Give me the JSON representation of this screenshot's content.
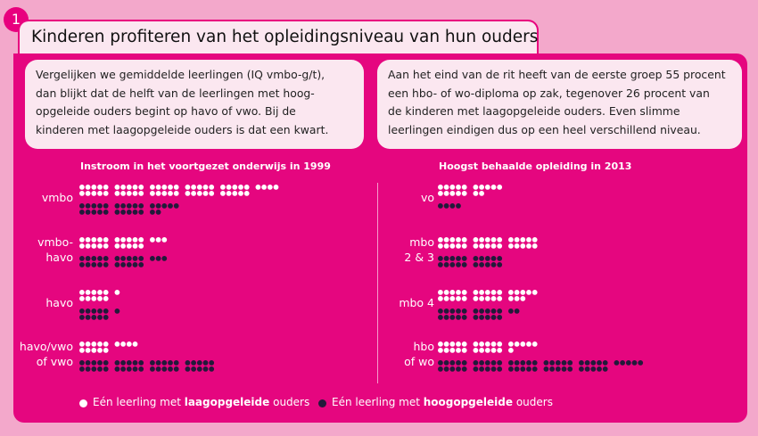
{
  "badge": "1",
  "title": "Kinderen profiteren van het opleidingsniveau van hun ouders",
  "intro_left": [
    "Vergelijken we gemiddelde leerlingen (IQ vmbo-g/t),",
    "dan blijkt dat de helft van de leerlingen met hoog-",
    "opgeleide ouders begint op havo of vwo. Bij de",
    "kinderen met laagopgeleide ouders is dat een kwart."
  ],
  "intro_right": [
    "Aan het eind van de rit heeft van de eerste groep 55 procent",
    "een hbo- of wo-diploma op zak, tegenover 26 procent van",
    "de kinderen met laagopgeleide ouders. Even slimme",
    "leerlingen eindigen dus op een heel verschillend niveau."
  ],
  "legend": {
    "low_prefix": "Eén leerling met ",
    "low_bold": "laagopgeleide",
    "low_suffix": " ouders",
    "high_prefix": "Eén leerling met ",
    "high_bold": "hoogopgeleide",
    "high_suffix": " ouders"
  },
  "colors": {
    "low": "#ffffff",
    "high": "#221a3a",
    "accent": "#e5067f",
    "bg": "#f3a8cb",
    "box": "#fbe7f0"
  },
  "chart_data": [
    {
      "type": "dot-matrix",
      "title": "Instroom in het voortgezet onderwijs in 1999",
      "categories": [
        "vmbo",
        "vmbo-\nhavo",
        "havo",
        "havo/vwo\nof vwo"
      ],
      "series": [
        {
          "name": "Eén leerling met laagopgeleide ouders",
          "values": [
            54,
            23,
            11,
            14
          ]
        },
        {
          "name": "Eén leerling met hoogopgeleide ouders",
          "values": [
            27,
            23,
            11,
            40
          ]
        }
      ]
    },
    {
      "type": "dot-matrix",
      "title": "Hoogst behaalde opleiding in 2013",
      "categories": [
        "vo",
        "mbo\n2 & 3",
        "mbo 4",
        "hbo\nof wo"
      ],
      "series": [
        {
          "name": "Eén leerling met laagopgeleide ouders",
          "values": [
            17,
            30,
            28,
            26
          ]
        },
        {
          "name": "Eén leerling met hoogopgeleide ouders",
          "values": [
            4,
            20,
            22,
            55
          ]
        }
      ]
    }
  ]
}
